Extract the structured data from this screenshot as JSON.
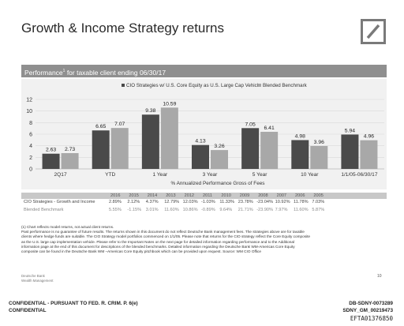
{
  "page": {
    "title": "Growth & Income Strategy returns",
    "panel_title": "Performance",
    "panel_title_sup": "1",
    "panel_title_rest": " for taxable client ending 06/30/17",
    "page_number": "10"
  },
  "chart_data": {
    "type": "bar",
    "categories": [
      "2Q17",
      "YTD",
      "1 Year",
      "3 Year",
      "5 Year",
      "10 Year",
      "1/1/05-06/30/17"
    ],
    "series": [
      {
        "name": "CIO Strategies w/ U.S. Core Equity as U.S. Large Cap Vehicle",
        "values": [
          2.63,
          6.65,
          9.38,
          4.13,
          7.05,
          4.98,
          5.94
        ],
        "color": "#4a4a4a"
      },
      {
        "name": "Blended Benchmark",
        "values": [
          2.73,
          7.07,
          10.59,
          3.26,
          6.41,
          3.96,
          4.96
        ],
        "color": "#a8a8a8"
      }
    ],
    "data_labels": [
      [
        "2.63",
        "6.65",
        "9.38",
        "4.13",
        "7.05",
        "4.98",
        "5.94"
      ],
      [
        "2.73",
        "7.07",
        "10.59",
        "3.26",
        "6.41",
        "3.96",
        "4.96"
      ]
    ],
    "yticks": [
      "0",
      "2",
      "4",
      "6",
      "8",
      "10",
      "12"
    ],
    "ylim": [
      0,
      12
    ],
    "xlabel": "% Annualized Performance Gross of Fees",
    "ylabel": "",
    "grid": true,
    "legend": "top-center"
  },
  "annual_table": {
    "years": [
      "2016",
      "2015",
      "2014",
      "2013",
      "2012",
      "2011",
      "2010",
      "2009",
      "2008",
      "2007",
      "2006",
      "2005"
    ],
    "rows": [
      {
        "label": "CIO Strategies - Growth and Income",
        "values": [
          "2.89%",
          "2.12%",
          "4.37%",
          "12.79%",
          "12.03%",
          "-1.03%",
          "11.33%",
          "23.78%",
          "-23.04%",
          "10.92%",
          "11.78%",
          "7.03%"
        ]
      },
      {
        "label": "Blended Benchmark",
        "values": [
          "5.55%",
          "-1.15%",
          "3.01%",
          "11.60%",
          "10.86%",
          "-0.89%",
          "9.64%",
          "21.71%",
          "-23.90%",
          "7.97%",
          "11.60%",
          "5.87%"
        ]
      }
    ]
  },
  "footnotes": [
    "(1) Chart reflects model returns, not actual client returns.",
    "Past performance is no guarantee of future results. The returns shown in this document do not reflect Deutsche Bank management fees. The strategies above are for taxable",
    "clients where hedge funds are suitable. The CIO Strategy model portfolios commenced on 1/1/05. Please note that returns for the CIO strategy reflect the Core Equity composite",
    "as the U.S. large cap implementation vehicle. Please refer to the Important Notes on the next page for detailed information regarding performance and to the Additional",
    "information page at the end of this document for descriptions of the blended benchmarks. Detailed information regarding the Deutsche Bank WM-Americas Core Equity",
    "composite can be found in the Deutsche Bank WM –Americas Core Equity pitchbook which can be provided upon request. Source: WM CIO Office"
  ],
  "brand_footer": [
    "Deutsche Bank",
    "Wealth Management"
  ],
  "confidential": {
    "left_line1": "CONFIDENTIAL - PURSUANT TO FED. R. CRIM. P. 6(e)",
    "left_line2": "CONFIDENTIAL",
    "right_line1": "DB-SDNY-0073289",
    "right_line2": "SDNY_GM_00219473",
    "efta": "EFTA01376850"
  },
  "colors": {
    "logo": "#7a7a7a",
    "header_bg": "#8f8f8f",
    "chart_bg": "#f1f1f1"
  },
  "icons": {
    "logo": "deutsche-bank-slash-square-logo"
  }
}
